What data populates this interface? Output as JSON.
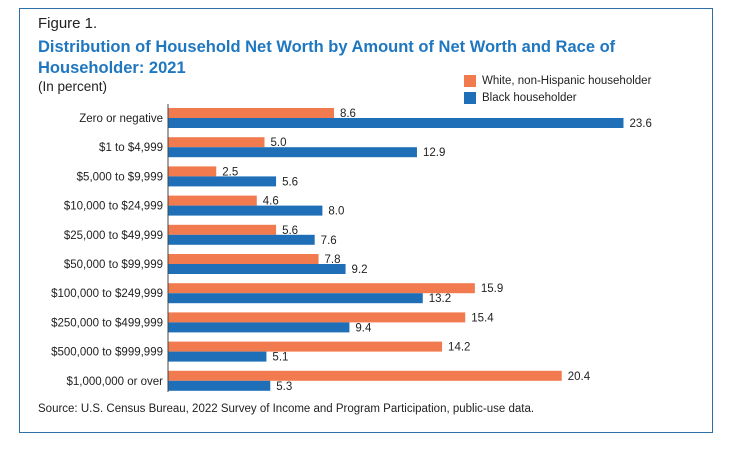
{
  "figure_label": "Figure 1.",
  "title": "Distribution of Household Net Worth by Amount of Net Worth and Race of Householder: 2021",
  "subtitle": "(In percent)",
  "source": "Source: U.S. Census Bureau, 2022 Survey of Income and Program Participation, public-use data.",
  "colors": {
    "white": "#f27a4f",
    "black": "#1f6fb8",
    "frame": "#2f6fa8",
    "title": "#1f77c0"
  },
  "legend": [
    {
      "name": "White, non-Hispanic householder",
      "color": "#f27a4f"
    },
    {
      "name": "Black householder",
      "color": "#1f6fb8"
    }
  ],
  "chart_data": {
    "type": "bar",
    "orientation": "horizontal",
    "categories": [
      "Zero or negative",
      "$1 to $4,999",
      "$5,000 to $9,999",
      "$10,000 to $24,999",
      "$25,000 to $49,999",
      "$50,000 to $99,999",
      "$100,000 to $249,999",
      "$250,000 to $499,999",
      "$500,000 to $999,999",
      "$1,000,000 or over"
    ],
    "series": [
      {
        "name": "White, non-Hispanic householder",
        "values": [
          8.6,
          5.0,
          2.5,
          4.6,
          5.6,
          7.8,
          15.9,
          15.4,
          14.2,
          20.4
        ],
        "labels": [
          "8.6",
          "5.0",
          "2.5",
          "4.6",
          "5.6",
          "7.8",
          "15.9",
          "15.4",
          "14.2",
          "20.4"
        ]
      },
      {
        "name": "Black householder",
        "values": [
          23.6,
          12.9,
          5.6,
          8.0,
          7.6,
          9.2,
          13.2,
          9.4,
          5.1,
          5.3
        ],
        "labels": [
          "23.6",
          "12.9",
          "5.6",
          "8.0",
          "7.6",
          "9.2",
          "13.2",
          "9.4",
          "5.1",
          "5.3"
        ]
      }
    ],
    "xlim": [
      0,
      25
    ],
    "grid": false,
    "legend_position": "top-right"
  }
}
